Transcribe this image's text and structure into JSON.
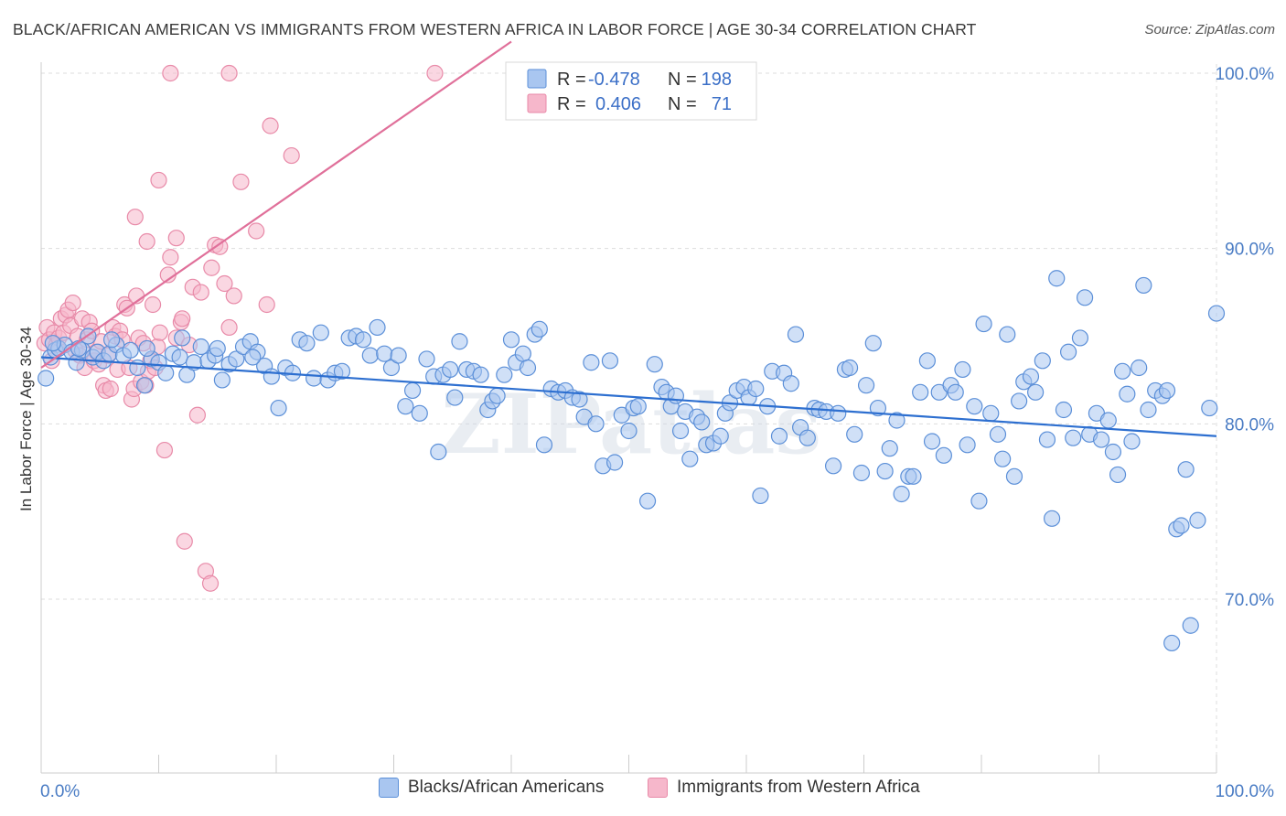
{
  "title": "BLACK/AFRICAN AMERICAN VS IMMIGRANTS FROM WESTERN AFRICA IN LABOR FORCE | AGE 30-34 CORRELATION CHART",
  "source": "Source: ZipAtlas.com",
  "watermark": "ZIPatlas",
  "colors": {
    "blue_fill": "#a9c6f0",
    "blue_stroke": "#5b8fd8",
    "blue_line": "#2d6fd0",
    "pink_fill": "#f6b7cb",
    "pink_stroke": "#e88aa8",
    "pink_line": "#e0709a",
    "grid": "#dddddd",
    "tick_text": "#4a7cc4"
  },
  "legend_box": {
    "rows": [
      {
        "r_label": "R =",
        "r_value": "-0.478",
        "n_label": "N =",
        "n_value": "198"
      },
      {
        "r_label": "R =",
        "r_value": "0.406",
        "n_label": "N =",
        "n_value": "71"
      }
    ]
  },
  "bottom_legend": {
    "series_a": "Blacks/African Americans",
    "series_b": "Immigrants from Western Africa"
  },
  "chart_data": {
    "type": "scatter",
    "ylabel": "In Labor Force | Age 30-34",
    "xlim": [
      0,
      100
    ],
    "ylim": [
      60,
      104
    ],
    "x_tick_labels": [
      "0.0%",
      "100.0%"
    ],
    "y_ticks": [
      70,
      80,
      90,
      100
    ],
    "y_tick_labels": [
      "70.0%",
      "80.0%",
      "90.0%",
      "100.0%"
    ],
    "grid": true,
    "legend_placement": "top-center",
    "series": [
      {
        "name": "Blacks/African Americans",
        "r": -0.478,
        "n": 198,
        "trend": {
          "x": [
            0,
            100
          ],
          "y": [
            83.8,
            79.3
          ]
        },
        "points": [
          [
            0.4,
            82.6
          ],
          [
            0.8,
            83.8
          ],
          [
            1.2,
            84.2
          ],
          [
            1.5,
            84.3
          ],
          [
            2.0,
            84.5
          ],
          [
            2.6,
            84.1
          ],
          [
            3.0,
            83.5
          ],
          [
            3.5,
            84.2
          ],
          [
            4.0,
            85.0
          ],
          [
            4.4,
            83.8
          ],
          [
            4.8,
            84.1
          ],
          [
            5.3,
            83.6
          ],
          [
            5.8,
            84.0
          ],
          [
            6.4,
            84.5
          ],
          [
            7.0,
            83.9
          ],
          [
            7.6,
            84.2
          ],
          [
            8.2,
            83.2
          ],
          [
            8.8,
            82.2
          ],
          [
            9.4,
            83.7
          ],
          [
            10.0,
            83.5
          ],
          [
            10.6,
            82.9
          ],
          [
            11.2,
            84.0
          ],
          [
            11.8,
            83.8
          ],
          [
            12.4,
            82.8
          ],
          [
            13.0,
            83.5
          ],
          [
            13.6,
            84.4
          ],
          [
            14.2,
            83.6
          ],
          [
            14.8,
            83.9
          ],
          [
            15.4,
            82.5
          ],
          [
            16.0,
            83.4
          ],
          [
            16.6,
            83.7
          ],
          [
            17.2,
            84.4
          ],
          [
            17.8,
            84.7
          ],
          [
            18.4,
            84.1
          ],
          [
            19.0,
            83.3
          ],
          [
            19.6,
            82.7
          ],
          [
            20.2,
            80.9
          ],
          [
            20.8,
            83.2
          ],
          [
            21.4,
            82.9
          ],
          [
            22.0,
            84.8
          ],
          [
            22.6,
            84.6
          ],
          [
            23.2,
            82.6
          ],
          [
            23.8,
            85.2
          ],
          [
            24.4,
            82.5
          ],
          [
            25.0,
            82.9
          ],
          [
            25.6,
            83.0
          ],
          [
            26.2,
            84.9
          ],
          [
            26.8,
            85.0
          ],
          [
            27.4,
            84.8
          ],
          [
            28.0,
            83.9
          ],
          [
            28.6,
            85.5
          ],
          [
            29.2,
            84.0
          ],
          [
            29.8,
            83.2
          ],
          [
            30.4,
            83.9
          ],
          [
            31.0,
            81.0
          ],
          [
            31.6,
            81.9
          ],
          [
            32.2,
            80.6
          ],
          [
            32.8,
            83.7
          ],
          [
            33.4,
            82.7
          ],
          [
            33.8,
            78.4
          ],
          [
            34.2,
            82.8
          ],
          [
            34.8,
            83.1
          ],
          [
            35.2,
            81.5
          ],
          [
            35.6,
            84.7
          ],
          [
            36.2,
            83.1
          ],
          [
            36.8,
            83.0
          ],
          [
            37.4,
            82.8
          ],
          [
            38.0,
            80.8
          ],
          [
            38.4,
            81.3
          ],
          [
            38.8,
            81.6
          ],
          [
            39.4,
            82.8
          ],
          [
            40.0,
            84.8
          ],
          [
            40.4,
            83.5
          ],
          [
            41.0,
            84.0
          ],
          [
            41.4,
            83.2
          ],
          [
            42.0,
            85.1
          ],
          [
            42.4,
            85.4
          ],
          [
            42.8,
            78.8
          ],
          [
            43.4,
            82.0
          ],
          [
            44.0,
            81.8
          ],
          [
            44.6,
            81.9
          ],
          [
            45.2,
            81.5
          ],
          [
            45.8,
            81.4
          ],
          [
            46.2,
            80.4
          ],
          [
            46.8,
            83.5
          ],
          [
            47.2,
            80.0
          ],
          [
            47.8,
            77.6
          ],
          [
            48.4,
            83.6
          ],
          [
            48.8,
            77.8
          ],
          [
            49.4,
            80.5
          ],
          [
            50.0,
            79.6
          ],
          [
            50.4,
            80.9
          ],
          [
            50.8,
            81.0
          ],
          [
            51.6,
            75.6
          ],
          [
            52.2,
            83.4
          ],
          [
            52.8,
            82.1
          ],
          [
            53.2,
            81.8
          ],
          [
            53.6,
            81.0
          ],
          [
            54.0,
            81.6
          ],
          [
            54.4,
            79.6
          ],
          [
            54.8,
            80.7
          ],
          [
            55.2,
            78.0
          ],
          [
            55.8,
            80.4
          ],
          [
            56.2,
            80.1
          ],
          [
            56.6,
            78.8
          ],
          [
            57.2,
            78.9
          ],
          [
            57.8,
            79.3
          ],
          [
            58.2,
            80.6
          ],
          [
            58.6,
            81.2
          ],
          [
            59.2,
            81.9
          ],
          [
            59.8,
            82.1
          ],
          [
            60.2,
            81.5
          ],
          [
            60.8,
            82.0
          ],
          [
            61.2,
            75.9
          ],
          [
            61.8,
            81.0
          ],
          [
            62.2,
            83.0
          ],
          [
            62.8,
            79.3
          ],
          [
            63.2,
            82.9
          ],
          [
            63.8,
            82.3
          ],
          [
            64.2,
            85.1
          ],
          [
            64.6,
            79.8
          ],
          [
            65.2,
            79.2
          ],
          [
            65.8,
            80.9
          ],
          [
            66.2,
            80.8
          ],
          [
            66.8,
            80.7
          ],
          [
            67.4,
            77.6
          ],
          [
            67.8,
            80.6
          ],
          [
            68.4,
            83.1
          ],
          [
            68.8,
            83.2
          ],
          [
            69.2,
            79.4
          ],
          [
            69.8,
            77.2
          ],
          [
            70.2,
            82.2
          ],
          [
            70.8,
            84.6
          ],
          [
            71.2,
            80.9
          ],
          [
            71.8,
            77.3
          ],
          [
            72.2,
            78.6
          ],
          [
            72.8,
            80.2
          ],
          [
            73.2,
            76.0
          ],
          [
            73.8,
            77.0
          ],
          [
            74.2,
            77.0
          ],
          [
            74.8,
            81.8
          ],
          [
            75.4,
            83.6
          ],
          [
            75.8,
            79.0
          ],
          [
            76.4,
            81.8
          ],
          [
            76.8,
            78.2
          ],
          [
            77.4,
            82.2
          ],
          [
            77.8,
            81.8
          ],
          [
            78.4,
            83.1
          ],
          [
            78.8,
            78.8
          ],
          [
            79.4,
            81.0
          ],
          [
            79.8,
            75.6
          ],
          [
            80.2,
            85.7
          ],
          [
            80.8,
            80.6
          ],
          [
            81.4,
            79.4
          ],
          [
            81.8,
            78.0
          ],
          [
            82.2,
            85.1
          ],
          [
            82.8,
            77.0
          ],
          [
            83.2,
            81.3
          ],
          [
            83.6,
            82.4
          ],
          [
            84.2,
            82.7
          ],
          [
            84.6,
            81.8
          ],
          [
            85.2,
            83.6
          ],
          [
            85.6,
            79.1
          ],
          [
            86.0,
            74.6
          ],
          [
            86.4,
            88.3
          ],
          [
            87.0,
            80.8
          ],
          [
            87.4,
            84.1
          ],
          [
            87.8,
            79.2
          ],
          [
            88.4,
            84.9
          ],
          [
            88.8,
            87.2
          ],
          [
            89.2,
            79.4
          ],
          [
            89.8,
            80.6
          ],
          [
            90.2,
            79.1
          ],
          [
            90.8,
            80.2
          ],
          [
            91.2,
            78.4
          ],
          [
            91.6,
            77.1
          ],
          [
            92.0,
            83.0
          ],
          [
            92.4,
            81.7
          ],
          [
            92.8,
            79.0
          ],
          [
            93.4,
            83.2
          ],
          [
            93.8,
            87.9
          ],
          [
            94.2,
            80.8
          ],
          [
            94.8,
            81.9
          ],
          [
            95.4,
            81.6
          ],
          [
            95.8,
            81.9
          ],
          [
            96.2,
            67.5
          ],
          [
            96.6,
            74.0
          ],
          [
            97.0,
            74.2
          ],
          [
            97.4,
            77.4
          ],
          [
            97.8,
            68.5
          ],
          [
            98.4,
            74.5
          ],
          [
            99.4,
            80.9
          ],
          [
            100.0,
            86.3
          ],
          [
            1.0,
            84.6
          ],
          [
            3.2,
            84.3
          ],
          [
            6.0,
            84.8
          ],
          [
            9.0,
            84.3
          ],
          [
            12.0,
            84.9
          ],
          [
            15.0,
            84.3
          ],
          [
            18.0,
            83.8
          ]
        ]
      },
      {
        "name": "Immigrants from Western Africa",
        "r": 0.406,
        "n": 71,
        "trend": {
          "x": [
            0,
            40
          ],
          "y": [
            83.2,
            101.8
          ]
        },
        "points": [
          [
            0.3,
            84.6
          ],
          [
            0.5,
            85.5
          ],
          [
            0.7,
            84.8
          ],
          [
            0.9,
            83.6
          ],
          [
            1.1,
            85.2
          ],
          [
            1.3,
            84.5
          ],
          [
            1.5,
            84.9
          ],
          [
            1.7,
            86.0
          ],
          [
            1.9,
            85.2
          ],
          [
            2.1,
            86.2
          ],
          [
            2.3,
            86.5
          ],
          [
            2.5,
            85.6
          ],
          [
            2.7,
            86.9
          ],
          [
            2.9,
            84.2
          ],
          [
            3.1,
            85.0
          ],
          [
            3.3,
            83.9
          ],
          [
            3.5,
            86.0
          ],
          [
            3.7,
            83.2
          ],
          [
            3.9,
            84.8
          ],
          [
            4.1,
            85.8
          ],
          [
            4.3,
            85.3
          ],
          [
            4.5,
            83.6
          ],
          [
            4.7,
            84.1
          ],
          [
            4.9,
            83.4
          ],
          [
            5.1,
            84.7
          ],
          [
            5.3,
            82.2
          ],
          [
            5.5,
            81.9
          ],
          [
            5.7,
            83.9
          ],
          [
            5.9,
            82.0
          ],
          [
            6.1,
            85.5
          ],
          [
            6.3,
            85.0
          ],
          [
            6.5,
            83.1
          ],
          [
            6.7,
            85.3
          ],
          [
            6.9,
            84.8
          ],
          [
            7.1,
            86.8
          ],
          [
            7.3,
            86.6
          ],
          [
            7.5,
            83.2
          ],
          [
            7.7,
            81.4
          ],
          [
            7.9,
            82.0
          ],
          [
            8.1,
            87.3
          ],
          [
            8.3,
            84.9
          ],
          [
            8.5,
            82.4
          ],
          [
            8.7,
            84.6
          ],
          [
            8.9,
            82.2
          ],
          [
            9.1,
            83.0
          ],
          [
            9.3,
            83.6
          ],
          [
            9.5,
            86.8
          ],
          [
            9.7,
            83.2
          ],
          [
            9.9,
            84.4
          ],
          [
            10.1,
            85.2
          ],
          [
            10.5,
            78.5
          ],
          [
            10.8,
            88.5
          ],
          [
            11.0,
            89.5
          ],
          [
            11.5,
            84.9
          ],
          [
            11.9,
            85.8
          ],
          [
            12.2,
            73.3
          ],
          [
            12.6,
            84.5
          ],
          [
            12.9,
            87.8
          ],
          [
            13.3,
            80.5
          ],
          [
            13.6,
            87.5
          ],
          [
            14.0,
            71.6
          ],
          [
            14.4,
            70.9
          ],
          [
            14.8,
            90.2
          ],
          [
            15.2,
            90.1
          ],
          [
            15.6,
            88.0
          ],
          [
            16.0,
            85.5
          ],
          [
            16.4,
            87.3
          ],
          [
            17.0,
            93.8
          ],
          [
            18.3,
            91.0
          ],
          [
            19.2,
            86.8
          ],
          [
            19.5,
            97.0
          ]
        ]
      }
    ],
    "extra_points_pink": [
      [
        8.0,
        91.8
      ],
      [
        9.0,
        90.4
      ],
      [
        11.5,
        90.6
      ],
      [
        12.0,
        86.0
      ],
      [
        14.5,
        88.9
      ],
      [
        10.0,
        93.9
      ],
      [
        21.3,
        95.3
      ],
      [
        11.0,
        100.0
      ],
      [
        16.0,
        100.0
      ],
      [
        33.5,
        100.0
      ]
    ]
  }
}
